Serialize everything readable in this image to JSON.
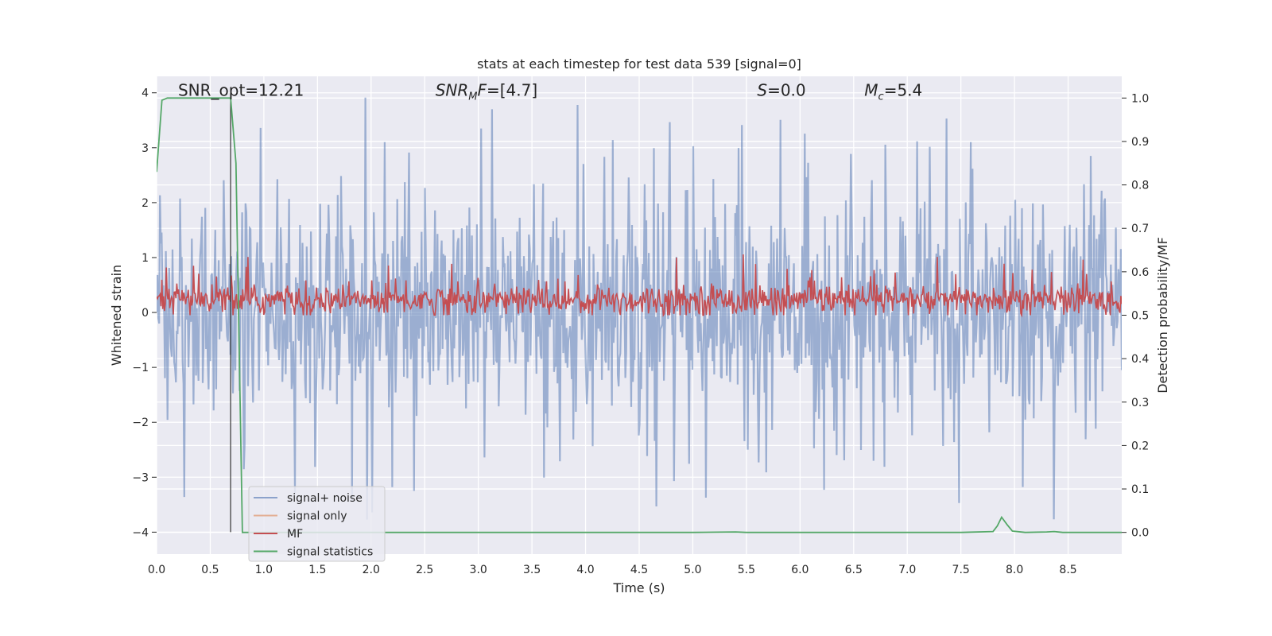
{
  "chart_data": {
    "type": "line",
    "title": "stats at each timestep for test data 539 [signal=0]",
    "xlabel": "Time (s)",
    "ylabel": "Whitened strain",
    "ylabel_right": "Detection probability/MF",
    "xlim": [
      0.0,
      9.0
    ],
    "ylim": [
      -4.4,
      4.3
    ],
    "ylim_right": [
      -0.05,
      1.05
    ],
    "x_ticks": [
      "0.0",
      "0.5",
      "1.0",
      "1.5",
      "2.0",
      "2.5",
      "3.0",
      "3.5",
      "4.0",
      "4.5",
      "5.0",
      "5.5",
      "6.0",
      "6.5",
      "7.0",
      "7.5",
      "8.0",
      "8.5"
    ],
    "y_ticks": [
      "4",
      "3",
      "2",
      "1",
      "0",
      "−1",
      "−2",
      "−3",
      "−4"
    ],
    "y_ticks_right": [
      "1.0",
      "0.9",
      "0.8",
      "0.7",
      "0.6",
      "0.5",
      "0.4",
      "0.3",
      "0.2",
      "0.1",
      "0.0"
    ],
    "grid": true,
    "legend_position": "lower-left",
    "annotations": [
      {
        "text": "SNR_opt=12.21",
        "x": 0.2,
        "y": 4.0
      },
      {
        "text": "SNR_MF=[4.7]",
        "x": 2.6,
        "y": 4.0
      },
      {
        "text": "S=0.0",
        "x": 5.6,
        "y": 4.0
      },
      {
        "text": "M_c=5.4",
        "x": 6.6,
        "y": 4.0
      }
    ],
    "vline": {
      "x": 0.69,
      "y_range": [
        -4.0,
        4.0
      ]
    },
    "series": [
      {
        "name": "signal+ noise",
        "color": "#4c72b0",
        "alpha": 0.5,
        "axis": "left",
        "description": "dense whitened strain noise, sample rate ~ 128/s, amplitude mostly within ±2.5 with spikes up to 3.9 and down to -4.0"
      },
      {
        "name": "signal only",
        "color": "#dd8452",
        "axis": "left",
        "x": [],
        "y": []
      },
      {
        "name": "MF",
        "color": "#c44e52",
        "axis": "right",
        "description": "matched filter output, mostly between 0.50 and 0.58, peaks up to ~0.63"
      },
      {
        "name": "signal statistics",
        "color": "#55a868",
        "axis": "right",
        "x": [
          0.0,
          0.05,
          0.1,
          0.2,
          0.3,
          0.4,
          0.5,
          0.6,
          0.65,
          0.69,
          0.74,
          0.8,
          0.85,
          1.0,
          2.0,
          3.0,
          4.0,
          5.0,
          5.4,
          5.5,
          6.0,
          7.0,
          7.5,
          7.8,
          7.84,
          7.88,
          7.93,
          7.98,
          8.1,
          8.3,
          8.37,
          8.45,
          9.0
        ],
        "y": [
          0.83,
          0.995,
          1.0,
          1.0,
          1.0,
          1.0,
          1.0,
          1.0,
          1.0,
          1.0,
          0.85,
          0.0,
          0.0,
          0.0,
          0.0,
          0.0,
          0.0,
          0.0,
          0.001,
          0.0,
          0.0,
          0.0,
          0.0,
          0.002,
          0.015,
          0.035,
          0.018,
          0.003,
          0.0,
          0.001,
          0.002,
          0.0,
          0.0
        ]
      }
    ]
  },
  "colors": {
    "plot_bg": "#eaeaf2",
    "grid": "#ffffff",
    "noise": "#4c72b0",
    "signal_only": "#dd8452",
    "mf": "#c44e52",
    "stats": "#55a868"
  }
}
